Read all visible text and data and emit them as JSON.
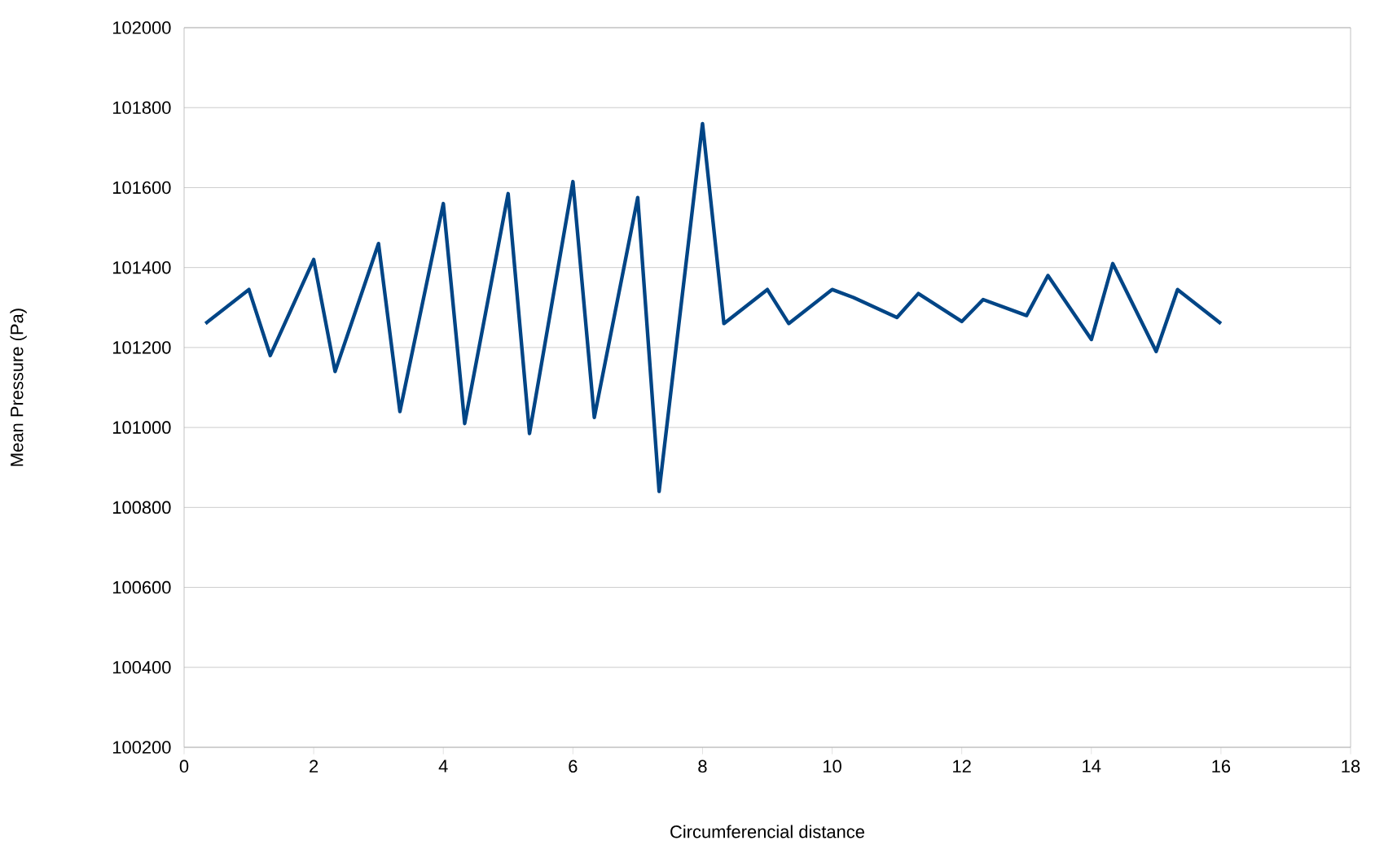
{
  "chart_data": {
    "type": "line",
    "xlabel": "Circumferencial distance",
    "ylabel": "Mean Pressure (Pa)",
    "x": [
      0.33,
      1,
      1.33,
      2,
      2.33,
      3,
      3.33,
      4,
      4.33,
      5,
      5.33,
      6,
      6.33,
      7,
      7.33,
      8,
      8.33,
      9,
      9.33,
      10,
      10.33,
      11,
      11.33,
      12,
      12.33,
      13,
      13.33,
      14,
      14.33,
      15,
      15.33,
      16
    ],
    "series": [
      {
        "color": "#004586",
        "values": [
          101260,
          101345,
          101180,
          101420,
          101140,
          101460,
          101040,
          101560,
          101010,
          101585,
          100985,
          101615,
          101025,
          101575,
          100840,
          101760,
          101260,
          101345,
          101260,
          101345,
          101325,
          101275,
          101335,
          101265,
          101320,
          101280,
          101380,
          101220,
          101410,
          101190,
          101345,
          101260
        ]
      }
    ],
    "xlim": [
      0,
      18
    ],
    "xticks": [
      0,
      2,
      4,
      6,
      8,
      10,
      12,
      14,
      16,
      18
    ],
    "ylim": [
      100200,
      102000
    ],
    "yticks": [
      100200,
      100400,
      100600,
      100800,
      101000,
      101200,
      101400,
      101600,
      101800,
      102000
    ],
    "grid": "y",
    "marker": "none",
    "line_style": "solid"
  }
}
